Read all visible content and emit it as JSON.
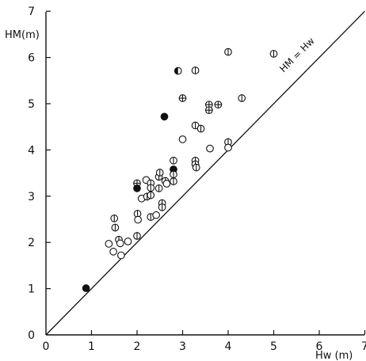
{
  "chart_data": {
    "type": "scatter",
    "title": "",
    "xlabel": "Hw (m)",
    "ylabel": "HM(m)",
    "xlim": [
      0,
      7
    ],
    "ylim": [
      0,
      7
    ],
    "x_ticks": [
      "0",
      "1",
      "2",
      "3",
      "4",
      "5",
      "6",
      "7"
    ],
    "y_ticks": [
      "0",
      "1",
      "2",
      "3",
      "4",
      "5",
      "6",
      "7"
    ],
    "reference_line": {
      "label": "HM = Hw",
      "from": [
        0,
        0
      ],
      "to": [
        7,
        7
      ]
    },
    "grid": false,
    "legend": "none",
    "marker_styles": [
      "open-circle",
      "circle-vertical-bar",
      "circle-cross",
      "filled-circle",
      "half-filled-circle"
    ],
    "points": [
      {
        "x": 0.88,
        "y": 1.01,
        "m": "filled-circle"
      },
      {
        "x": 1.38,
        "y": 1.97,
        "m": "open-circle"
      },
      {
        "x": 1.48,
        "y": 1.8,
        "m": "open-circle"
      },
      {
        "x": 1.5,
        "y": 2.52,
        "m": "circle-vertical-bar"
      },
      {
        "x": 1.52,
        "y": 2.32,
        "m": "circle-vertical-bar"
      },
      {
        "x": 1.6,
        "y": 2.06,
        "m": "circle-vertical-bar"
      },
      {
        "x": 1.63,
        "y": 1.98,
        "m": "open-circle"
      },
      {
        "x": 1.65,
        "y": 1.72,
        "m": "open-circle"
      },
      {
        "x": 1.8,
        "y": 2.02,
        "m": "open-circle"
      },
      {
        "x": 2.0,
        "y": 3.28,
        "m": "circle-cross"
      },
      {
        "x": 2.0,
        "y": 3.17,
        "m": "filled-circle"
      },
      {
        "x": 2.01,
        "y": 2.62,
        "m": "circle-vertical-bar"
      },
      {
        "x": 2.02,
        "y": 2.49,
        "m": "open-circle"
      },
      {
        "x": 2.0,
        "y": 2.14,
        "m": "circle-vertical-bar"
      },
      {
        "x": 2.1,
        "y": 2.95,
        "m": "open-circle"
      },
      {
        "x": 2.2,
        "y": 3.35,
        "m": "open-circle"
      },
      {
        "x": 2.22,
        "y": 2.99,
        "m": "circle-vertical-bar"
      },
      {
        "x": 2.3,
        "y": 3.28,
        "m": "circle-vertical-bar"
      },
      {
        "x": 2.3,
        "y": 3.18,
        "m": "circle-vertical-bar"
      },
      {
        "x": 2.3,
        "y": 3.02,
        "m": "circle-vertical-bar"
      },
      {
        "x": 2.3,
        "y": 2.55,
        "m": "circle-vertical-bar"
      },
      {
        "x": 2.42,
        "y": 2.59,
        "m": "open-circle"
      },
      {
        "x": 2.48,
        "y": 3.42,
        "m": "circle-vertical-bar"
      },
      {
        "x": 2.48,
        "y": 3.17,
        "m": "circle-vertical-bar"
      },
      {
        "x": 2.5,
        "y": 3.51,
        "m": "circle-vertical-bar"
      },
      {
        "x": 2.55,
        "y": 2.85,
        "m": "circle-vertical-bar"
      },
      {
        "x": 2.55,
        "y": 2.76,
        "m": "circle-vertical-bar"
      },
      {
        "x": 2.6,
        "y": 4.72,
        "m": "filled-circle"
      },
      {
        "x": 2.62,
        "y": 3.33,
        "m": "circle-vertical-bar"
      },
      {
        "x": 2.65,
        "y": 3.27,
        "m": "open-circle"
      },
      {
        "x": 2.8,
        "y": 3.77,
        "m": "circle-vertical-bar"
      },
      {
        "x": 2.8,
        "y": 3.58,
        "m": "filled-circle"
      },
      {
        "x": 2.8,
        "y": 3.47,
        "m": "circle-vertical-bar"
      },
      {
        "x": 2.8,
        "y": 3.32,
        "m": "circle-vertical-bar"
      },
      {
        "x": 2.9,
        "y": 5.71,
        "m": "half-filled-circle"
      },
      {
        "x": 3.0,
        "y": 5.12,
        "m": "circle-cross"
      },
      {
        "x": 3.0,
        "y": 4.23,
        "m": "open-circle"
      },
      {
        "x": 3.28,
        "y": 5.72,
        "m": "circle-vertical-bar"
      },
      {
        "x": 3.28,
        "y": 4.53,
        "m": "circle-vertical-bar"
      },
      {
        "x": 3.28,
        "y": 3.77,
        "m": "circle-vertical-bar"
      },
      {
        "x": 3.28,
        "y": 3.69,
        "m": "circle-vertical-bar"
      },
      {
        "x": 3.3,
        "y": 3.62,
        "m": "circle-vertical-bar"
      },
      {
        "x": 3.4,
        "y": 4.46,
        "m": "circle-vertical-bar"
      },
      {
        "x": 3.58,
        "y": 4.98,
        "m": "circle-cross"
      },
      {
        "x": 3.58,
        "y": 4.86,
        "m": "circle-cross"
      },
      {
        "x": 3.6,
        "y": 4.03,
        "m": "open-circle"
      },
      {
        "x": 3.78,
        "y": 4.98,
        "m": "circle-cross"
      },
      {
        "x": 4.0,
        "y": 6.12,
        "m": "circle-vertical-bar"
      },
      {
        "x": 4.0,
        "y": 4.17,
        "m": "circle-vertical-bar"
      },
      {
        "x": 4.0,
        "y": 4.05,
        "m": "open-circle"
      },
      {
        "x": 4.3,
        "y": 5.12,
        "m": "circle-vertical-bar"
      },
      {
        "x": 5.0,
        "y": 6.08,
        "m": "circle-vertical-bar"
      }
    ]
  }
}
